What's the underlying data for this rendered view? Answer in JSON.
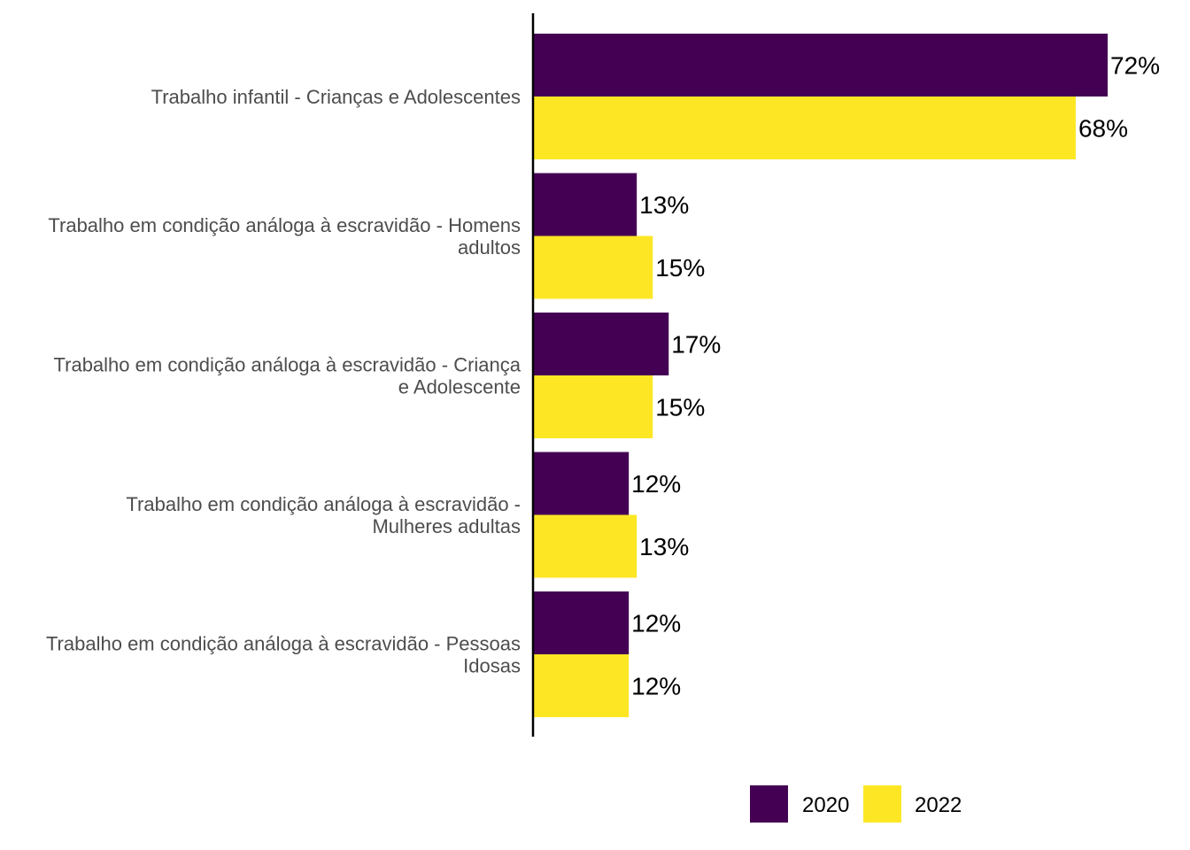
{
  "chart_data": {
    "type": "bar",
    "orientation": "horizontal",
    "categories": [
      [
        "Trabalho infantil - Crianças e Adolescentes"
      ],
      [
        "Trabalho em condição análoga à escravidão - Homens",
        "adultos"
      ],
      [
        "Trabalho em condição análoga à escravidão - Criança",
        "e Adolescente"
      ],
      [
        "Trabalho em condição análoga à escravidão -",
        "Mulheres adultas"
      ],
      [
        "Trabalho em condição análoga à escravidão - Pessoas",
        "Idosas"
      ]
    ],
    "series": [
      {
        "name": "2020",
        "color": "#440154",
        "values": [
          72,
          13,
          17,
          12,
          12
        ],
        "labels": [
          "72%",
          "13%",
          "17%",
          "12%",
          "12%"
        ]
      },
      {
        "name": "2022",
        "color": "#fde725",
        "values": [
          68,
          15,
          15,
          13,
          12
        ],
        "labels": [
          "68%",
          "15%",
          "15%",
          "13%",
          "12%"
        ]
      }
    ],
    "xlim": [
      0,
      72
    ],
    "grid": false,
    "legend_position": "bottom"
  }
}
